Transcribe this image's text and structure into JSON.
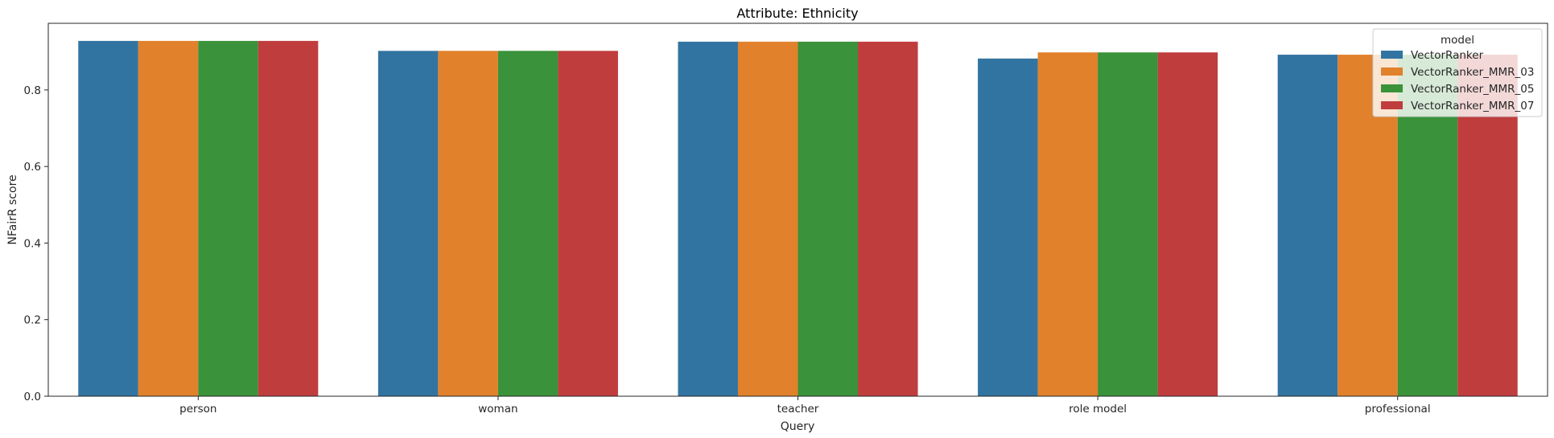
{
  "chart_data": {
    "type": "bar",
    "title": "Attribute: Ethnicity",
    "xlabel": "Query",
    "ylabel": "NFairR score",
    "categories": [
      "person",
      "woman",
      "teacher",
      "role model",
      "professional"
    ],
    "series": [
      {
        "name": "VectorRanker",
        "color": "#3274a1",
        "values": [
          0.928,
          0.902,
          0.926,
          0.882,
          0.892
        ]
      },
      {
        "name": "VectorRanker_MMR_03",
        "color": "#e1812c",
        "values": [
          0.928,
          0.902,
          0.926,
          0.898,
          0.892
        ]
      },
      {
        "name": "VectorRanker_MMR_05",
        "color": "#3a923a",
        "values": [
          0.928,
          0.902,
          0.926,
          0.898,
          0.892
        ]
      },
      {
        "name": "VectorRanker_MMR_07",
        "color": "#c03d3e",
        "values": [
          0.928,
          0.902,
          0.926,
          0.898,
          0.892
        ]
      }
    ],
    "ylim": [
      0,
      0.974
    ],
    "yticks": [
      0.0,
      0.2,
      0.4,
      0.6,
      0.8
    ],
    "ytick_labels": [
      "0.0",
      "0.2",
      "0.4",
      "0.6",
      "0.8"
    ],
    "legend": {
      "title": "model",
      "placement": "top-right"
    },
    "grid": false
  }
}
